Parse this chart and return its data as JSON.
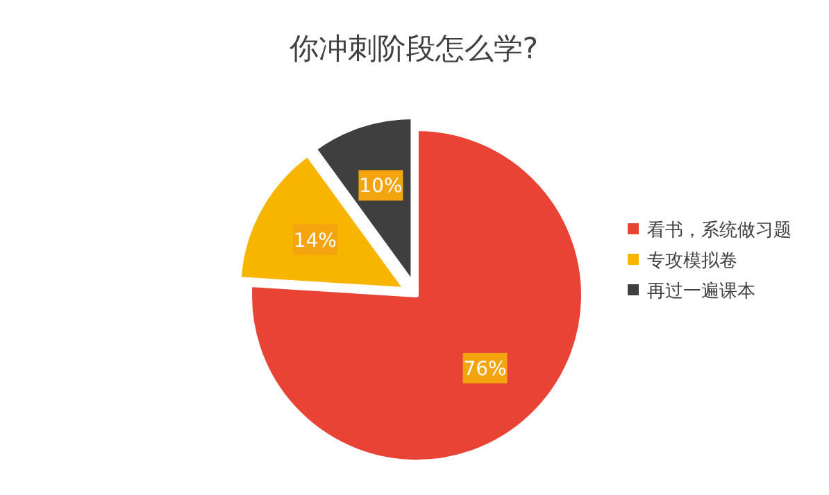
{
  "chart_data": {
    "type": "pie",
    "title": "你冲刺阶段怎么学?",
    "categories": [
      "看书，系统做习题",
      "专攻模拟卷",
      "再过一遍课本"
    ],
    "values": [
      76,
      14,
      10
    ],
    "colors": [
      "#e94335",
      "#f7b500",
      "#3f3f3f"
    ],
    "value_labels": [
      "76%",
      "14%",
      "10%"
    ],
    "legend": "right"
  }
}
